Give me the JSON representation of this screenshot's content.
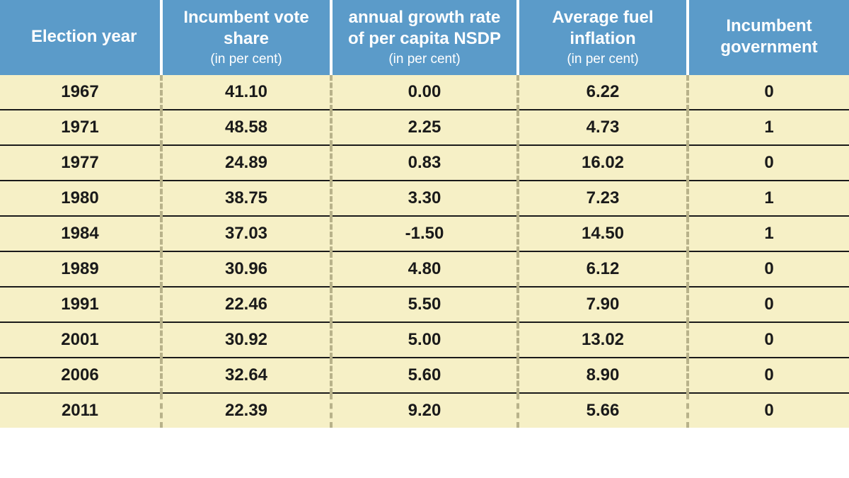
{
  "table": {
    "type": "table",
    "header_bg": "#5b9bc9",
    "header_text_color": "#ffffff",
    "body_bg": "#f6f0c6",
    "body_text_color": "#1a1a1a",
    "row_border_color": "#1a1a1a",
    "col_separator_color_header": "#ffffff",
    "col_separator_color_body": "#b8b28a",
    "header_fontsize": 24,
    "header_sub_fontsize": 19,
    "body_fontsize": 24,
    "columns": [
      {
        "title": "Election year",
        "sub": "",
        "align": "left",
        "width_pct": 19
      },
      {
        "title": "Incumbent vote share",
        "sub": "(in per cent)",
        "align": "center",
        "width_pct": 20
      },
      {
        "title": "annual growth rate of per capita NSDP",
        "sub": "(in per cent)",
        "align": "center",
        "width_pct": 22
      },
      {
        "title": "Average fuel inflation",
        "sub": "(in per cent)",
        "align": "center",
        "width_pct": 20
      },
      {
        "title": "Incumbent government",
        "sub": "",
        "align": "center",
        "width_pct": 19
      }
    ],
    "rows": [
      [
        "1967",
        "41.10",
        "0.00",
        "6.22",
        "0"
      ],
      [
        "1971",
        "48.58",
        "2.25",
        "4.73",
        "1"
      ],
      [
        "1977",
        "24.89",
        "0.83",
        "16.02",
        "0"
      ],
      [
        "1980",
        "38.75",
        "3.30",
        "7.23",
        "1"
      ],
      [
        "1984",
        "37.03",
        "-1.50",
        "14.50",
        "1"
      ],
      [
        "1989",
        "30.96",
        "4.80",
        "6.12",
        "0"
      ],
      [
        "1991",
        "22.46",
        "5.50",
        "7.90",
        "0"
      ],
      [
        "2001",
        "30.92",
        "5.00",
        "13.02",
        "0"
      ],
      [
        "2006",
        "32.64",
        "5.60",
        "8.90",
        "0"
      ],
      [
        "2011",
        "22.39",
        "9.20",
        "5.66",
        "0"
      ]
    ]
  }
}
